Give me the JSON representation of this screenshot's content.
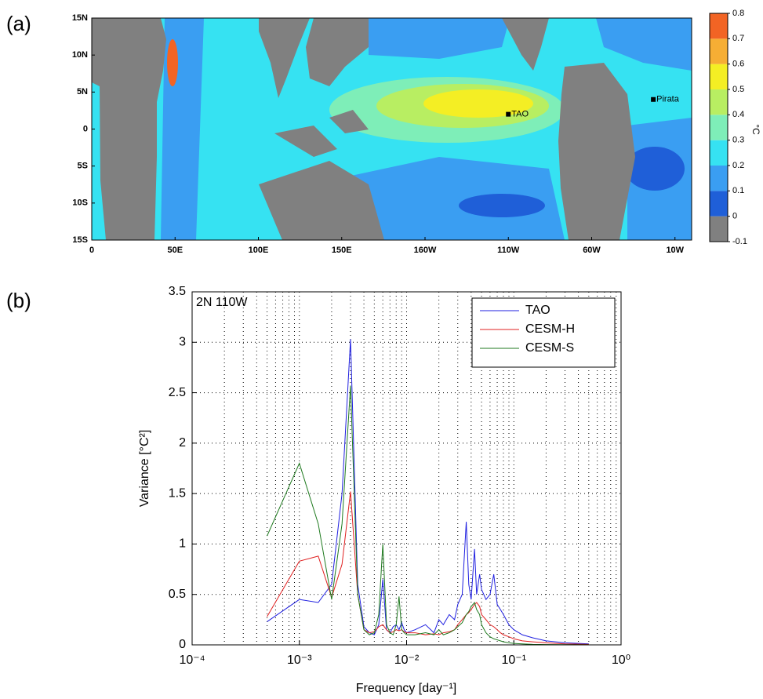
{
  "chart_data": [
    {
      "type": "map",
      "panel_label": "(a)",
      "xlim": [
        0,
        360
      ],
      "ylim": [
        -15,
        15
      ],
      "xticks": [
        0,
        {
          "value": 50,
          "label": "50E"
        },
        {
          "value": 100,
          "label": "100E"
        },
        {
          "value": 150,
          "label": "150E"
        },
        {
          "value": 200,
          "label": "160W"
        },
        {
          "value": 250,
          "label": "110W"
        },
        {
          "value": 300,
          "label": "60W"
        },
        {
          "value": 350,
          "label": "10W"
        }
      ],
      "yticks": [
        {
          "value": -15,
          "label": "15S"
        },
        {
          "value": -10,
          "label": "10S"
        },
        {
          "value": -5,
          "label": "5S"
        },
        0,
        {
          "value": 5,
          "label": "5N"
        },
        {
          "value": 10,
          "label": "10N"
        },
        {
          "value": 15,
          "label": "15N"
        }
      ],
      "markers": [
        {
          "label": "TAO",
          "lon": 250,
          "lat": 2
        },
        {
          "label": "Pirata",
          "lon": 337,
          "lat": 4
        }
      ],
      "colorbar": {
        "label": "°C",
        "ticks": [
          -0.1,
          0,
          0.1,
          0.2,
          0.3,
          0.4,
          0.5,
          0.6,
          0.7,
          0.8
        ],
        "colors": [
          "#808080",
          "#1f5fd8",
          "#3a9ef2",
          "#36e2f2",
          "#7eeeb8",
          "#b8ee62",
          "#f4ee24",
          "#f6ae34",
          "#f26424"
        ]
      }
    },
    {
      "type": "line",
      "panel_label": "(b)",
      "annotation": "2N 110W",
      "xlabel": "Frequency [day⁻¹]",
      "ylabel": "Variance [°C²]",
      "log_x": true,
      "grid": true,
      "minor_grid": true,
      "legend": "upper right",
      "xlim": [
        0.0001,
        1
      ],
      "ylim": [
        0,
        3.5
      ],
      "xticks": [
        {
          "value": 0.0001,
          "label": "10⁻⁴"
        },
        {
          "value": 0.001,
          "label": "10⁻³"
        },
        {
          "value": 0.01,
          "label": "10⁻²"
        },
        {
          "value": 0.1,
          "label": "10⁻¹"
        },
        {
          "value": 1,
          "label": "10⁰"
        }
      ],
      "yticks": [
        0,
        0.5,
        1,
        1.5,
        2,
        2.5,
        3,
        3.5
      ],
      "x": [
        0.0005,
        0.001,
        0.0015,
        0.002,
        0.0025,
        0.003,
        0.0035,
        0.004,
        0.0045,
        0.005,
        0.0055,
        0.006,
        0.0065,
        0.007,
        0.0075,
        0.008,
        0.0085,
        0.009,
        0.0095,
        0.01,
        0.012,
        0.015,
        0.018,
        0.02,
        0.022,
        0.025,
        0.028,
        0.03,
        0.033,
        0.036,
        0.038,
        0.04,
        0.043,
        0.045,
        0.048,
        0.05,
        0.055,
        0.06,
        0.065,
        0.07,
        0.075,
        0.08,
        0.09,
        0.1,
        0.12,
        0.15,
        0.2,
        0.3,
        0.5
      ],
      "series": [
        {
          "name": "TAO",
          "color": "#1f1fe0",
          "values": [
            0.23,
            0.45,
            0.42,
            0.6,
            1.5,
            3.03,
            0.6,
            0.18,
            0.12,
            0.1,
            0.2,
            0.65,
            0.15,
            0.12,
            0.18,
            0.2,
            0.15,
            0.22,
            0.15,
            0.12,
            0.15,
            0.2,
            0.12,
            0.25,
            0.2,
            0.3,
            0.25,
            0.4,
            0.5,
            1.22,
            0.6,
            0.45,
            0.95,
            0.5,
            0.7,
            0.55,
            0.45,
            0.5,
            0.7,
            0.4,
            0.35,
            0.3,
            0.2,
            0.15,
            0.1,
            0.07,
            0.04,
            0.02,
            0.01
          ]
        },
        {
          "name": "CESM-H",
          "color": "#e02020",
          "values": [
            0.28,
            0.83,
            0.88,
            0.47,
            0.8,
            1.52,
            0.5,
            0.15,
            0.12,
            0.13,
            0.18,
            0.2,
            0.15,
            0.12,
            0.13,
            0.15,
            0.14,
            0.15,
            0.13,
            0.12,
            0.12,
            0.1,
            0.11,
            0.1,
            0.12,
            0.13,
            0.15,
            0.2,
            0.25,
            0.3,
            0.32,
            0.35,
            0.4,
            0.42,
            0.38,
            0.3,
            0.25,
            0.2,
            0.18,
            0.15,
            0.12,
            0.1,
            0.08,
            0.06,
            0.04,
            0.03,
            0.02,
            0.01,
            0.005
          ]
        },
        {
          "name": "CESM-S",
          "color": "#1f7a1f",
          "values": [
            1.08,
            1.8,
            1.2,
            0.45,
            1.2,
            2.57,
            0.5,
            0.15,
            0.1,
            0.12,
            0.3,
            1.0,
            0.2,
            0.12,
            0.1,
            0.2,
            0.48,
            0.15,
            0.12,
            0.1,
            0.1,
            0.12,
            0.1,
            0.15,
            0.1,
            0.12,
            0.15,
            0.18,
            0.22,
            0.3,
            0.33,
            0.38,
            0.42,
            0.35,
            0.3,
            0.2,
            0.12,
            0.08,
            0.06,
            0.05,
            0.04,
            0.03,
            0.02,
            0.015,
            0.01,
            0.005,
            0.003,
            0.002,
            0.001
          ]
        }
      ]
    }
  ]
}
